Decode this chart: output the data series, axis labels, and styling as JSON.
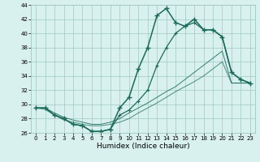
{
  "xlabel": "Humidex (Indice chaleur)",
  "x": [
    0,
    1,
    2,
    3,
    4,
    5,
    6,
    7,
    8,
    9,
    10,
    11,
    12,
    13,
    14,
    15,
    16,
    17,
    18,
    19,
    20,
    21,
    22,
    23
  ],
  "line1": [
    29.5,
    29.5,
    28.5,
    28.0,
    27.2,
    27.0,
    26.2,
    26.2,
    26.5,
    29.5,
    31.0,
    35.0,
    38.0,
    42.5,
    43.5,
    41.5,
    41.0,
    42.0,
    40.5,
    40.5,
    39.5,
    34.5,
    33.5,
    33.0
  ],
  "line2": [
    29.5,
    29.5,
    28.5,
    28.0,
    27.2,
    27.0,
    26.2,
    26.2,
    26.5,
    28.5,
    29.2,
    30.5,
    32.0,
    35.5,
    38.0,
    40.0,
    41.0,
    41.5,
    40.5,
    40.5,
    39.5,
    34.5,
    33.5,
    33.0
  ],
  "line3": [
    29.5,
    29.5,
    28.8,
    28.2,
    27.8,
    27.5,
    27.2,
    27.2,
    27.5,
    28.0,
    28.8,
    29.5,
    30.2,
    31.0,
    31.8,
    32.5,
    33.5,
    34.5,
    35.5,
    36.5,
    37.5,
    33.0,
    33.0,
    33.0
  ],
  "line4": [
    29.5,
    29.3,
    28.5,
    27.8,
    27.5,
    27.2,
    27.0,
    27.0,
    27.2,
    27.5,
    28.0,
    28.8,
    29.5,
    30.2,
    31.0,
    31.8,
    32.5,
    33.2,
    34.0,
    35.0,
    36.0,
    33.0,
    33.0,
    33.0
  ],
  "ylim": [
    26,
    44
  ],
  "xlim": [
    -0.5,
    23.5
  ],
  "yticks": [
    26,
    28,
    30,
    32,
    34,
    36,
    38,
    40,
    42,
    44
  ],
  "xticks": [
    0,
    1,
    2,
    3,
    4,
    5,
    6,
    7,
    8,
    9,
    10,
    11,
    12,
    13,
    14,
    15,
    16,
    17,
    18,
    19,
    20,
    21,
    22,
    23
  ],
  "line_color": "#1a6b5a",
  "bg_color": "#d8f0ee",
  "grid_color": "#a0c8c0",
  "fig_bg": "#d8f0ee"
}
